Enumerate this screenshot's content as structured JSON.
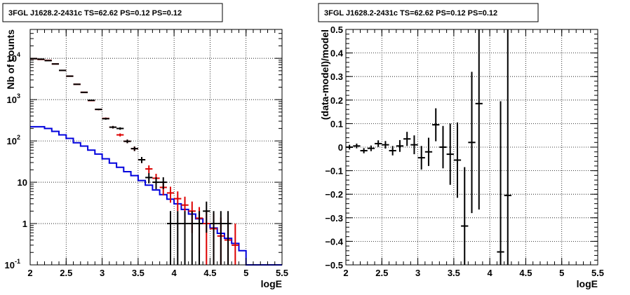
{
  "chart_data": [
    {
      "type": "scatter",
      "title": "3FGL J1628.2-2431c TS=62.62 PS=0.12 PS=0.12",
      "xlabel": "logE",
      "ylabel": "Nb of counts",
      "xlim": [
        2,
        5.5
      ],
      "ylim": [
        0.1,
        50000
      ],
      "yscale": "log",
      "grid": true,
      "xticks": [
        {
          "v": 2,
          "label": "2"
        },
        {
          "v": 2.5,
          "label": "2.5"
        },
        {
          "v": 3,
          "label": "3"
        },
        {
          "v": 3.5,
          "label": "3.5"
        },
        {
          "v": 4,
          "label": "4"
        },
        {
          "v": 4.5,
          "label": "4.5"
        },
        {
          "v": 5,
          "label": "5"
        },
        {
          "v": 5.5,
          "label": "5.5"
        }
      ],
      "yticks": [
        {
          "v": 0.1,
          "label": "10",
          "sup": "-1"
        },
        {
          "v": 1,
          "label": "1",
          "sup": ""
        },
        {
          "v": 10,
          "label": "10",
          "sup": ""
        },
        {
          "v": 100,
          "label": "10",
          "sup": "2"
        },
        {
          "v": 1000,
          "label": "10",
          "sup": "3"
        },
        {
          "v": 10000,
          "label": "10",
          "sup": "4"
        }
      ],
      "series": [
        {
          "role": "source-model",
          "color": "#0000dd",
          "style": "step",
          "edges": [
            2.0,
            2.1,
            2.2,
            2.3,
            2.4,
            2.5,
            2.6,
            2.7,
            2.8,
            2.9,
            3.0,
            3.1,
            3.2,
            3.3,
            3.4,
            3.5,
            3.6,
            3.7,
            3.8,
            3.9,
            4.0,
            4.1,
            4.2,
            4.3,
            4.4,
            4.5,
            4.6,
            4.7,
            4.8,
            4.9,
            5.0,
            5.1,
            5.2,
            5.3,
            5.4,
            5.5
          ],
          "values": [
            220,
            220,
            200,
            170,
            140,
            115,
            90,
            75,
            60,
            48,
            37,
            29,
            23,
            18,
            14.5,
            11,
            8.5,
            6.5,
            5,
            3.9,
            3,
            2.2,
            1.7,
            1.3,
            1.0,
            0.78,
            0.58,
            0.44,
            0.33,
            0.22,
            0.1,
            0.1,
            0.1,
            0.1,
            0.1
          ]
        },
        {
          "role": "total-model",
          "color": "#dd0000",
          "style": "errorbars",
          "x": [
            2.05,
            2.15,
            2.25,
            2.35,
            2.45,
            2.55,
            2.65,
            2.75,
            2.85,
            2.95,
            3.05,
            3.15,
            3.25,
            3.35,
            3.45,
            3.55,
            3.65,
            3.75,
            3.85,
            3.95,
            4.05,
            4.15,
            4.25,
            4.35,
            4.45,
            4.55,
            4.65,
            4.75,
            4.85
          ],
          "y": [
            9800,
            9400,
            8900,
            7300,
            5100,
            3700,
            2350,
            1500,
            950,
            580,
            350,
            215,
            140,
            98,
            65,
            35,
            21,
            12.5,
            7.5,
            5.5,
            4.0,
            2.8,
            2.0,
            1.35,
            1.0,
            0.75,
            0.5,
            0.4,
            0.3
          ],
          "yerr_low": [
            99,
            97,
            94,
            85,
            71,
            61,
            48,
            39,
            31,
            24,
            18.7,
            14.7,
            11.8,
            9.9,
            8.1,
            5.9,
            4.6,
            3.5,
            2.7,
            2.3,
            2.0,
            1.67,
            1.41,
            1.16,
            0.95,
            0.8,
            0.45,
            0.35,
            0.2
          ],
          "yerr_high": [
            99,
            97,
            94,
            85,
            71,
            61,
            48,
            39,
            31,
            24,
            18.7,
            14.7,
            11.8,
            9.9,
            8.1,
            5.9,
            4.6,
            3.5,
            2.7,
            2.3,
            2.0,
            1.67,
            1.41,
            1.16,
            1.1,
            1.0,
            0.9,
            0.8,
            0.7
          ]
        },
        {
          "role": "data",
          "color": "#000000",
          "style": "errorbars",
          "x": [
            2.05,
            2.15,
            2.25,
            2.35,
            2.45,
            2.55,
            2.65,
            2.75,
            2.85,
            2.95,
            3.05,
            3.15,
            3.25,
            3.35,
            3.45,
            3.55,
            3.65,
            3.75,
            3.85,
            3.95,
            4.05,
            4.15,
            4.25,
            4.35,
            4.45,
            4.55,
            4.65,
            4.75
          ],
          "y": [
            9800,
            9500,
            8800,
            7300,
            5100,
            3700,
            2350,
            1500,
            960,
            580,
            345,
            215,
            200,
            98,
            65,
            35,
            13,
            10,
            10,
            1,
            1,
            1,
            1,
            1,
            2,
            1,
            1,
            1
          ],
          "yerr_low": [
            99,
            97,
            94,
            85,
            71,
            61,
            48,
            39,
            31,
            24,
            18.6,
            14.7,
            14.1,
            9.9,
            8.1,
            5.9,
            3.6,
            3.2,
            3.2,
            0.9,
            0.9,
            0.9,
            0.9,
            0.9,
            1.4,
            0.9,
            0.9,
            0.9
          ],
          "yerr_high": [
            99,
            97,
            94,
            85,
            71,
            61,
            48,
            39,
            31,
            24,
            18.6,
            14.7,
            14.1,
            9.9,
            8.1,
            5.9,
            3.6,
            3.2,
            3.2,
            1,
            1,
            1,
            1,
            1,
            1.4,
            1,
            1,
            1
          ]
        }
      ]
    },
    {
      "type": "scatter",
      "title": "3FGL J1628.2-2431c TS=62.62 PS=0.12 PS=0.12",
      "xlabel": "logE",
      "ylabel": "(data-model)/model",
      "xlim": [
        2,
        5.5
      ],
      "ylim": [
        -0.5,
        0.5
      ],
      "grid": true,
      "xticks": [
        {
          "v": 2,
          "label": "2"
        },
        {
          "v": 2.5,
          "label": "2.5"
        },
        {
          "v": 3,
          "label": "3"
        },
        {
          "v": 3.5,
          "label": "3.5"
        },
        {
          "v": 4,
          "label": "4"
        },
        {
          "v": 4.5,
          "label": "4.5"
        },
        {
          "v": 5,
          "label": "5"
        },
        {
          "v": 5.5,
          "label": "5.5"
        }
      ],
      "yticks": [
        {
          "v": -0.5,
          "label": "−0.5"
        },
        {
          "v": -0.4,
          "label": "−0.4"
        },
        {
          "v": -0.3,
          "label": "−0.3"
        },
        {
          "v": -0.2,
          "label": "−0.2"
        },
        {
          "v": -0.1,
          "label": "−0.1"
        },
        {
          "v": 0,
          "label": "0"
        },
        {
          "v": 0.1,
          "label": "0.1"
        },
        {
          "v": 0.2,
          "label": "0.2"
        },
        {
          "v": 0.3,
          "label": "0.3"
        },
        {
          "v": 0.4,
          "label": "0.4"
        },
        {
          "v": 0.5,
          "label": "0.5"
        }
      ],
      "series": [
        {
          "role": "residuals",
          "color": "#000000",
          "style": "errorbars",
          "x": [
            2.05,
            2.15,
            2.25,
            2.35,
            2.45,
            2.55,
            2.65,
            2.75,
            2.85,
            2.95,
            3.05,
            3.15,
            3.25,
            3.35,
            3.45,
            3.55,
            3.65,
            3.75,
            3.85,
            4.15,
            4.25
          ],
          "y": [
            0.0,
            0.005,
            -0.015,
            -0.005,
            0.015,
            0.01,
            -0.015,
            0.005,
            0.035,
            0.01,
            -0.045,
            -0.02,
            0.095,
            0.0,
            -0.03,
            -0.055,
            -0.335,
            0.02,
            0.185,
            -0.445,
            -0.205
          ],
          "yerr": [
            0.01,
            0.01,
            0.011,
            0.012,
            0.014,
            0.016,
            0.02,
            0.025,
            0.03,
            0.04,
            0.05,
            0.06,
            0.07,
            0.09,
            0.13,
            0.16,
            0.25,
            0.3,
            0.45,
            0.64,
            0.85
          ]
        }
      ]
    }
  ]
}
